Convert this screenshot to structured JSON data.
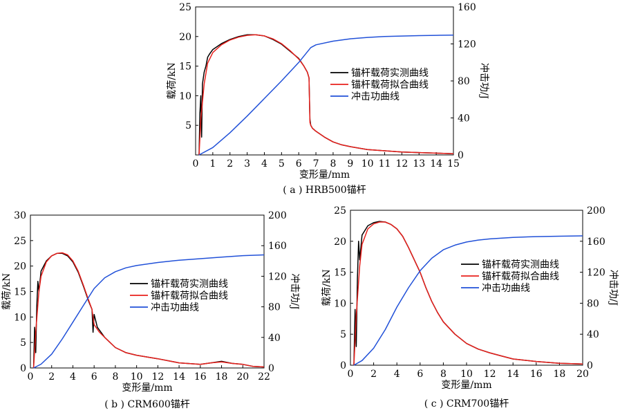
{
  "colors": {
    "measured": "#000000",
    "fitted": "#e8201c",
    "impact": "#2050d8"
  },
  "chart_data": [
    {
      "type": "line",
      "caption": "( a ) HRB500锚杆",
      "xlabel": "变形量/mm",
      "ylabel": "载荷/kN",
      "y2label": "冲击功/J",
      "xlim": [
        0,
        15
      ],
      "ylim": [
        0,
        25
      ],
      "y2lim": [
        0,
        160
      ],
      "xticks": [
        0,
        1,
        2,
        3,
        4,
        5,
        6,
        7,
        8,
        9,
        10,
        11,
        12,
        13,
        14,
        15
      ],
      "yticks": [
        5,
        10,
        15,
        20,
        25
      ],
      "y2ticks": [
        0,
        40,
        80,
        120,
        160
      ],
      "legend_position": "right-middle",
      "series": [
        {
          "name": "锚杆载荷实测曲线",
          "axis": "left",
          "color_key": "measured",
          "x": [
            0.2,
            0.25,
            0.3,
            0.35,
            0.4,
            0.5,
            0.6,
            0.7,
            0.8,
            1.0,
            1.5,
            2.0,
            2.5,
            3.0,
            3.5,
            4.0,
            4.5,
            5.0,
            5.5,
            6.0,
            6.3,
            6.5,
            6.6,
            6.65,
            6.7,
            6.8,
            7.0,
            7.5,
            8.0,
            8.5,
            9.0,
            10.0,
            11.0,
            12.0,
            13.0,
            14.0,
            15.0
          ],
          "y": [
            0,
            7,
            10,
            3,
            12,
            14,
            15,
            16.5,
            17,
            17.8,
            18.8,
            19.5,
            20,
            20.3,
            20.3,
            20.1,
            19.5,
            18.7,
            17.5,
            16.3,
            15,
            14,
            13,
            6,
            5,
            4.5,
            4,
            3,
            2.2,
            1.7,
            1.4,
            0.9,
            0.7,
            0.5,
            0.4,
            0.3,
            0.2
          ]
        },
        {
          "name": "锚杆载荷拟合曲线",
          "axis": "left",
          "color_key": "fitted",
          "x": [
            0.2,
            0.3,
            0.5,
            0.7,
            1.0,
            1.5,
            2.0,
            2.5,
            3.0,
            3.5,
            4.0,
            4.5,
            5.0,
            5.5,
            6.0,
            6.3,
            6.5,
            6.6,
            6.65,
            6.7,
            6.8,
            7.0,
            7.5,
            8.0,
            8.5,
            9.0,
            10.0,
            11.0,
            12.0,
            13.0,
            14.0,
            15.0
          ],
          "y": [
            0,
            6,
            12,
            15.5,
            17.3,
            18.6,
            19.4,
            19.9,
            20.2,
            20.3,
            20.1,
            19.6,
            18.8,
            17.6,
            16.2,
            15,
            14,
            13,
            5.5,
            5,
            4.5,
            4,
            3,
            2.2,
            1.7,
            1.4,
            0.9,
            0.7,
            0.5,
            0.4,
            0.3,
            0.2
          ]
        },
        {
          "name": "冲击功曲线",
          "axis": "right",
          "color_key": "impact",
          "x": [
            0.2,
            1,
            2,
            3,
            4,
            5,
            6,
            6.7,
            7,
            8,
            9,
            10,
            11,
            12,
            13,
            14,
            15
          ],
          "y": [
            0,
            8,
            24,
            42,
            61,
            80,
            100,
            116,
            119,
            123,
            125.5,
            127,
            128,
            128.5,
            129,
            129.3,
            129.5
          ]
        }
      ]
    },
    {
      "type": "line",
      "caption": "( b ) CRM600锚杆",
      "xlabel": "变形量/mm",
      "ylabel": "载荷/kN",
      "y2label": "冲击功/J",
      "xlim": [
        0,
        22
      ],
      "ylim": [
        0,
        30
      ],
      "y2lim": [
        0,
        200
      ],
      "xticks": [
        0,
        2,
        4,
        6,
        8,
        10,
        12,
        14,
        16,
        18,
        20,
        22
      ],
      "yticks": [
        0,
        5,
        10,
        15,
        20,
        25,
        30
      ],
      "y2ticks": [
        0,
        40,
        80,
        120,
        160,
        200
      ],
      "legend_position": "right-middle",
      "series": [
        {
          "name": "锚杆载荷实测曲线",
          "axis": "left",
          "color_key": "measured",
          "x": [
            0.3,
            0.4,
            0.5,
            0.6,
            0.7,
            0.8,
            1.0,
            1.5,
            2.0,
            2.5,
            3.0,
            3.5,
            4.0,
            4.5,
            5.0,
            5.5,
            5.8,
            5.9,
            6.0,
            6.3,
            7.0,
            8.0,
            9.0,
            10.0,
            12.0,
            14.0,
            16.0,
            17.0,
            18.0,
            19.0,
            20.0,
            21.0,
            22.0
          ],
          "y": [
            0,
            8,
            3,
            12,
            17,
            15,
            19,
            21,
            22,
            22.5,
            22.5,
            22,
            20.8,
            18.8,
            16,
            13,
            11.5,
            7,
            10.5,
            8,
            6,
            4,
            3,
            2.5,
            1.8,
            1,
            0.7,
            1,
            1.3,
            0.9,
            0.7,
            0.3,
            0.2
          ]
        },
        {
          "name": "锚杆载荷拟合曲线",
          "axis": "left",
          "color_key": "fitted",
          "x": [
            0.3,
            0.5,
            0.8,
            1.0,
            1.5,
            2.0,
            2.5,
            3.0,
            3.5,
            4.0,
            4.5,
            5.0,
            5.5,
            5.8,
            5.9,
            6.0,
            6.5,
            7.0,
            8.0,
            9.0,
            10.0,
            12.0,
            14.0,
            16.0,
            17.0,
            18.0,
            19.0,
            20.0,
            21.0,
            22.0
          ],
          "y": [
            0,
            7,
            15,
            18,
            20.8,
            22,
            22.5,
            22.6,
            22.2,
            21,
            19,
            16.2,
            13.2,
            11.5,
            10,
            8.5,
            7,
            6,
            4,
            3,
            2.5,
            1.8,
            1,
            0.7,
            1,
            1.2,
            0.9,
            0.7,
            0.3,
            0.2
          ]
        },
        {
          "name": "冲击功曲线",
          "axis": "right",
          "color_key": "impact",
          "x": [
            0.3,
            1,
            2,
            3,
            4,
            5,
            6,
            7,
            8,
            9,
            10,
            12,
            14,
            16,
            18,
            20,
            22
          ],
          "y": [
            0,
            5,
            18,
            38,
            60,
            82,
            104,
            118,
            126,
            131,
            134,
            138,
            141,
            143,
            145,
            147,
            148
          ]
        }
      ]
    },
    {
      "type": "line",
      "caption": "( c ) CRM700锚杆",
      "xlabel": "变形量/mm",
      "ylabel": "载荷/kN",
      "y2label": "冲击功/J",
      "xlim": [
        0,
        20
      ],
      "ylim": [
        0,
        25
      ],
      "y2lim": [
        0,
        200
      ],
      "xticks": [
        0,
        2,
        4,
        6,
        8,
        10,
        12,
        14,
        16,
        18,
        20
      ],
      "yticks": [
        0,
        5,
        10,
        15,
        20,
        25
      ],
      "y2ticks": [
        0,
        40,
        80,
        120,
        160,
        200
      ],
      "legend_position": "right-top",
      "series": [
        {
          "name": "锚杆载荷实测曲线",
          "axis": "left",
          "color_key": "measured",
          "x": [
            0.3,
            0.4,
            0.5,
            0.6,
            0.7,
            0.8,
            1.0,
            1.5,
            2.0,
            2.5,
            3.0,
            3.5,
            4.0,
            4.5,
            5.0,
            5.5,
            6.0,
            6.5,
            7.0,
            7.5,
            8.0,
            9.0,
            10.0,
            11.0,
            12.0,
            13.0,
            14.0,
            16.0,
            18.0,
            20.0
          ],
          "y": [
            0,
            9,
            3,
            14,
            20,
            17,
            21,
            22.5,
            23,
            23.2,
            23.1,
            22.7,
            22,
            20.8,
            19,
            17,
            15,
            12.5,
            10.3,
            8.5,
            7,
            5,
            3.5,
            2.6,
            2,
            1.5,
            1,
            0.6,
            0.3,
            0.2
          ]
        },
        {
          "name": "锚杆载荷拟合曲线",
          "axis": "left",
          "color_key": "fitted",
          "x": [
            0.3,
            0.5,
            0.8,
            1.0,
            1.5,
            2.0,
            2.5,
            3.0,
            3.5,
            4.0,
            4.5,
            5.0,
            5.5,
            6.0,
            6.5,
            7.0,
            7.5,
            8.0,
            9.0,
            10.0,
            11.0,
            12.0,
            13.0,
            14.0,
            16.0,
            18.0,
            20.0
          ],
          "y": [
            0,
            8,
            16,
            19.5,
            22,
            22.8,
            23.1,
            23.1,
            22.7,
            22,
            20.8,
            19,
            17,
            15,
            12.5,
            10.3,
            8.5,
            7,
            5,
            3.5,
            2.6,
            2,
            1.5,
            1,
            0.6,
            0.3,
            0.2
          ]
        },
        {
          "name": "冲击功曲线",
          "axis": "right",
          "color_key": "impact",
          "x": [
            0.3,
            1,
            2,
            3,
            4,
            5,
            6,
            7,
            8,
            9,
            10,
            11,
            12,
            14,
            16,
            18,
            20
          ],
          "y": [
            0,
            6,
            22,
            46,
            75,
            100,
            122,
            138,
            149,
            155,
            159,
            161.5,
            163,
            165,
            166,
            166.5,
            167
          ]
        }
      ]
    }
  ]
}
